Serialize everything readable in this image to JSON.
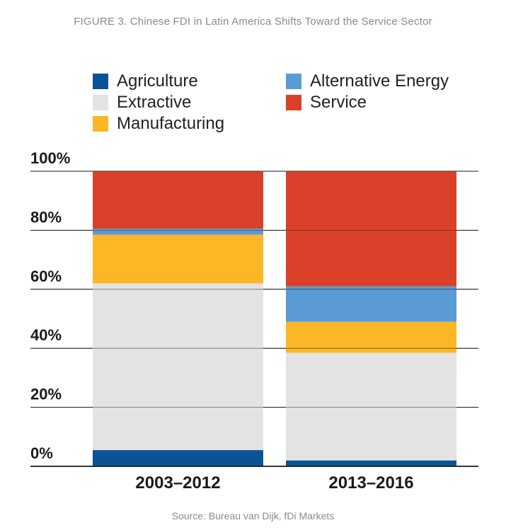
{
  "chart_data": {
    "type": "bar",
    "stacked": true,
    "title": "FIGURE 3. Chinese FDI in Latin America Shifts Toward the Service Sector",
    "source": "Source: Bureau van Dijk, fDi Markets",
    "categories": [
      "2003–2012",
      "2013–2016"
    ],
    "yticks": [
      "0%",
      "20%",
      "40%",
      "60%",
      "80%",
      "100%"
    ],
    "ylim": [
      0,
      100
    ],
    "legend_position": "top",
    "series": [
      {
        "name": "Agriculture",
        "color": "#0b5394",
        "values": [
          5.5,
          2
        ]
      },
      {
        "name": "Extractive",
        "color": "#e3e3e4",
        "values": [
          56.5,
          36.5
        ]
      },
      {
        "name": "Manufacturing",
        "color": "#fbb726",
        "values": [
          16.5,
          10.5
        ]
      },
      {
        "name": "Alternative Energy",
        "color": "#5b9bd5",
        "values": [
          2,
          12
        ]
      },
      {
        "name": "Service",
        "color": "#d9412a",
        "values": [
          19.5,
          39
        ]
      }
    ]
  }
}
